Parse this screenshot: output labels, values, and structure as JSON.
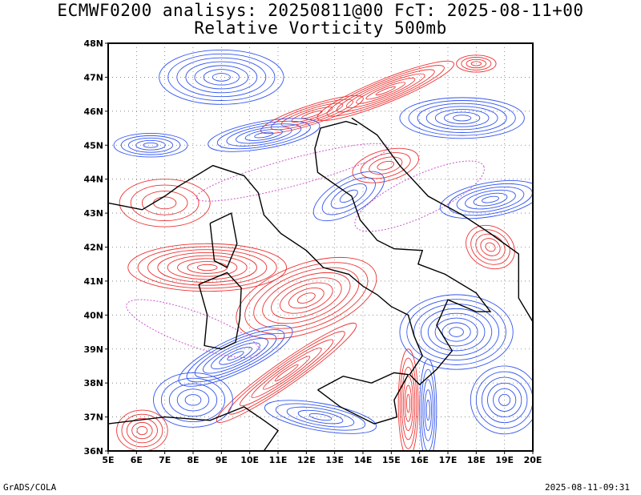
{
  "header": {
    "title_line1": "ECMWF0200 analisys: 20250811@00 FcT: 2025-08-11+00",
    "title_line2": "Relative Vorticity 500mb"
  },
  "map": {
    "projection": "lat-lon",
    "lon_range": [
      5,
      20
    ],
    "lat_range": [
      36,
      48
    ],
    "lon_ticks": [
      "5E",
      "6E",
      "7E",
      "8E",
      "9E",
      "10E",
      "11E",
      "12E",
      "13E",
      "14E",
      "15E",
      "16E",
      "17E",
      "18E",
      "19E",
      "20E"
    ],
    "lat_ticks": [
      "36N",
      "37N",
      "38N",
      "39N",
      "40N",
      "41N",
      "42N",
      "43N",
      "44N",
      "45N",
      "46N",
      "47N",
      "48N"
    ],
    "grid": "dotted",
    "colors": {
      "positive_contours": "#ee3333",
      "negative_contours": "#3355ee",
      "zero_contour": "#cc55cc",
      "coastlines": "#000000",
      "background": "#ffffff"
    }
  },
  "footer": {
    "left": "GrADS/COLA",
    "right": "2025-08-11-09:31"
  }
}
